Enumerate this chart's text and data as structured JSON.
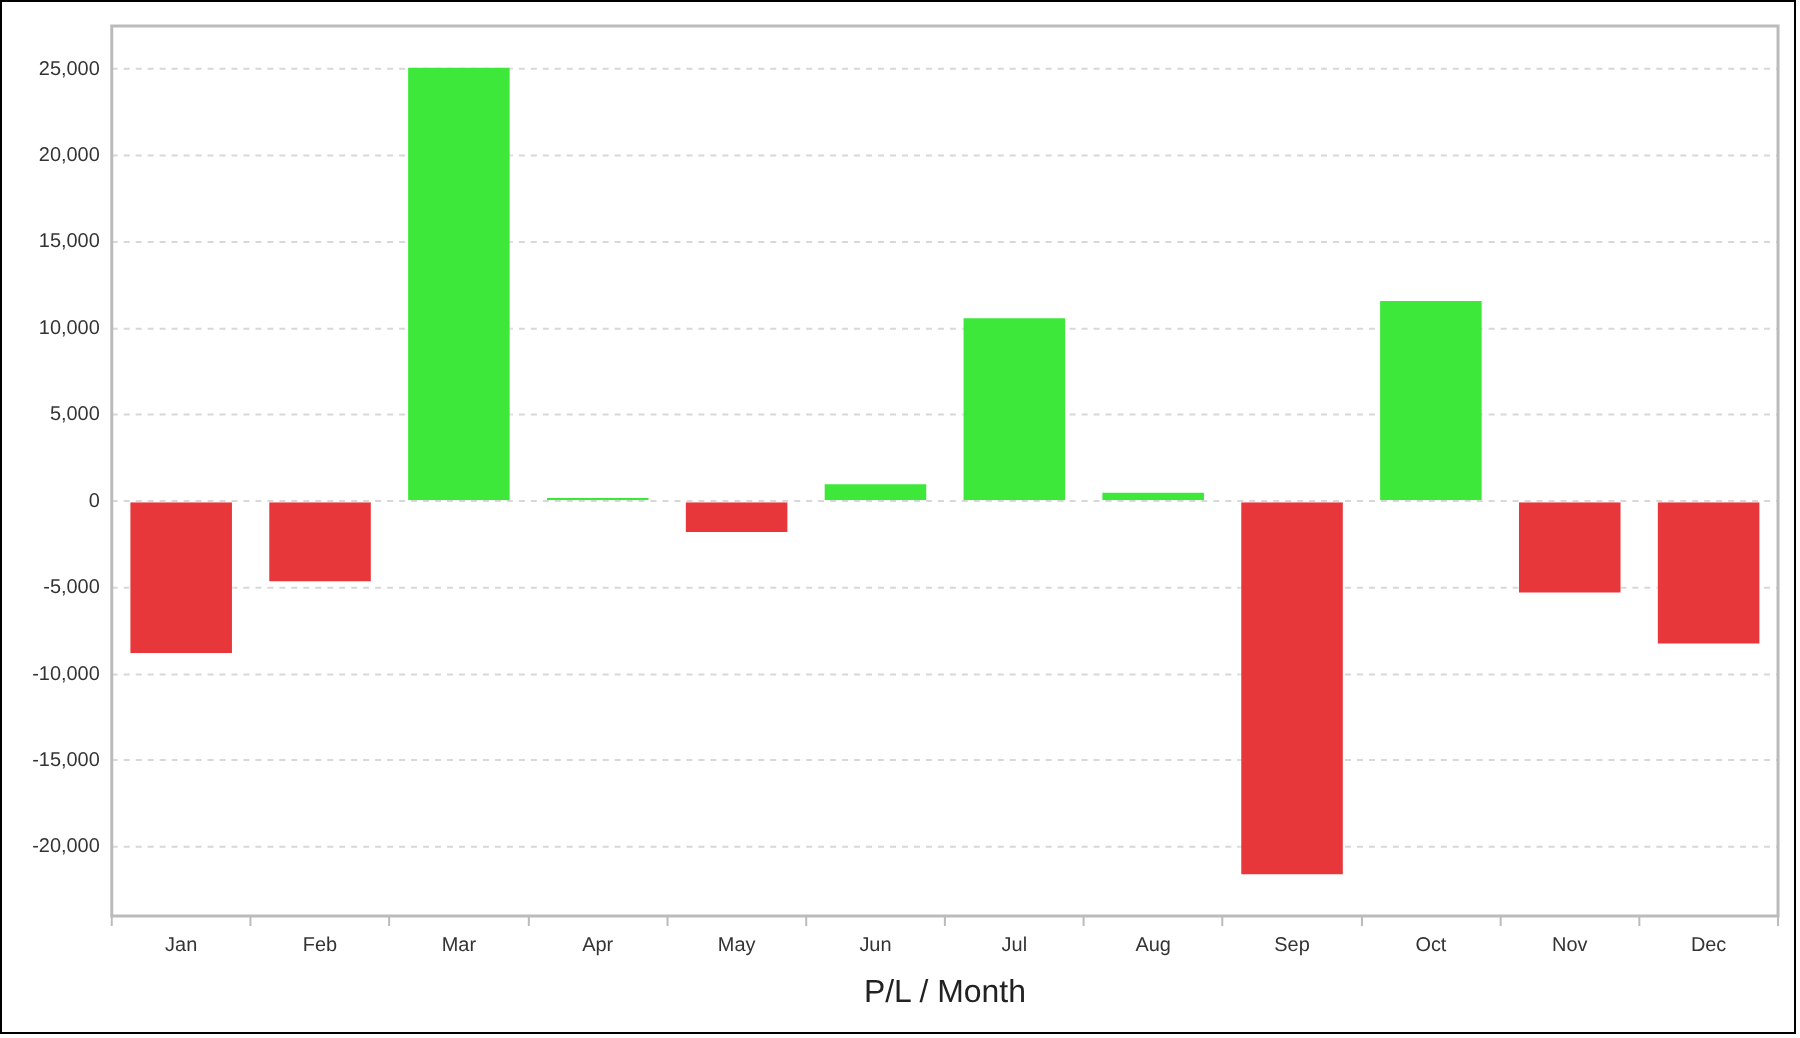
{
  "chart_data": {
    "type": "bar",
    "xlabel": "P/L / Month",
    "categories": [
      "Jan",
      "Feb",
      "Mar",
      "Apr",
      "May",
      "Jun",
      "Jul",
      "Aug",
      "Sep",
      "Oct",
      "Nov",
      "Dec"
    ],
    "values": [
      -8900,
      -4750,
      25200,
      300,
      -1900,
      1100,
      10700,
      600,
      -21700,
      11700,
      -5400,
      -8350
    ],
    "colors": [
      "#e8373b",
      "#e8373b",
      "#3de83a",
      "#3de83a",
      "#e8373b",
      "#3de83a",
      "#3de83a",
      "#3de83a",
      "#e8373b",
      "#3de83a",
      "#e8373b",
      "#e8373b"
    ],
    "ylim": [
      -24000,
      27500
    ],
    "yticks": [
      {
        "value": -20000,
        "label": "-20,000"
      },
      {
        "value": -15000,
        "label": "-15,000"
      },
      {
        "value": -10000,
        "label": "-10,000"
      },
      {
        "value": -5000,
        "label": "-5,000"
      },
      0,
      {
        "value": 5000,
        "label": "5,000"
      },
      {
        "value": 10000,
        "label": "10,000"
      },
      {
        "value": 15000,
        "label": "15,000"
      },
      {
        "value": 20000,
        "label": "20,000"
      },
      {
        "value": 25000,
        "label": "25,000"
      }
    ],
    "grid": "y",
    "legend": false
  }
}
